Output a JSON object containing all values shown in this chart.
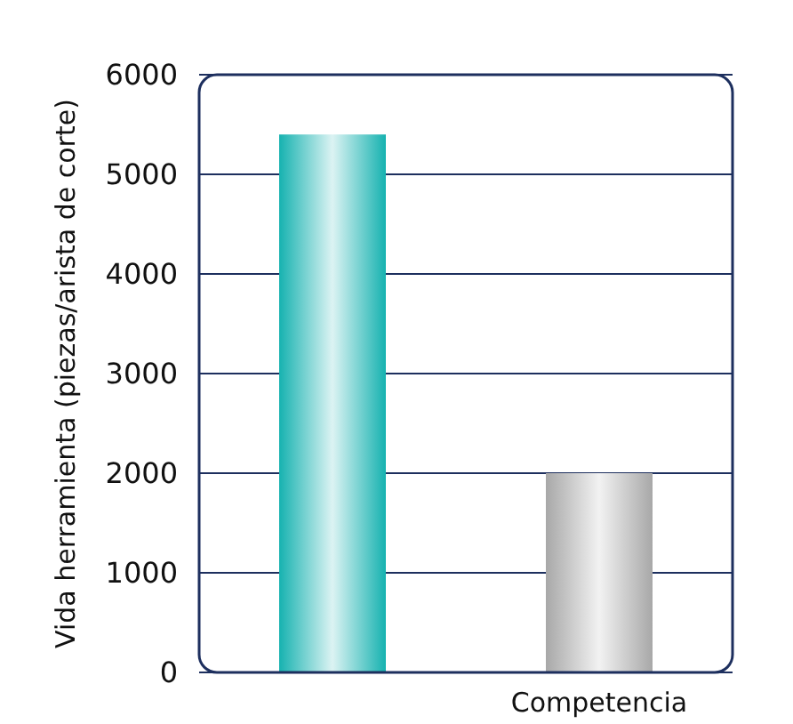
{
  "chart_data": {
    "type": "bar",
    "ylabel": "Vida herramienta (piezas/arista de corte)",
    "categories": [
      null,
      "Competencia"
    ],
    "values": [
      5400,
      2000
    ],
    "colors": [
      "#16b2b0",
      "#a8a8a8"
    ],
    "ylim": [
      0,
      6000
    ],
    "yticks": [
      0,
      1000,
      2000,
      3000,
      4000,
      5000,
      6000
    ],
    "grid": "y"
  }
}
